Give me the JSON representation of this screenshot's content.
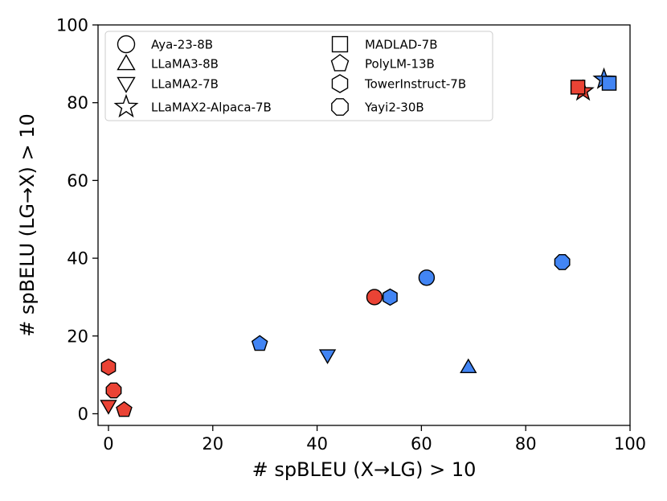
{
  "chart_data": {
    "type": "scatter",
    "title": "",
    "xlabel": "# spBLEU (X→LG) > 10",
    "ylabel": "# spBELU (LG→X) > 10",
    "xlim": [
      -2,
      100
    ],
    "ylim": [
      -3,
      100
    ],
    "xticks": [
      0,
      20,
      40,
      60,
      80,
      100
    ],
    "yticks": [
      0,
      20,
      40,
      60,
      80,
      100
    ],
    "grid": false,
    "legend_position": "top-left",
    "colors": {
      "blue": "#4285f4",
      "red": "#ea4335"
    },
    "models": [
      {
        "name": "Aya-23-8B",
        "marker": "circle"
      },
      {
        "name": "LLaMA3-8B",
        "marker": "triangle-up"
      },
      {
        "name": "LLaMA2-7B",
        "marker": "triangle-down"
      },
      {
        "name": "LLaMAX2-Alpaca-7B",
        "marker": "star"
      },
      {
        "name": "MADLAD-7B",
        "marker": "square"
      },
      {
        "name": "PolyLM-13B",
        "marker": "pentagon"
      },
      {
        "name": "TowerInstruct-7B",
        "marker": "hexagon"
      },
      {
        "name": "Yayi2-30B",
        "marker": "octagon"
      }
    ],
    "points": [
      {
        "model": "TowerInstruct-7B",
        "color": "red",
        "x": 0,
        "y": 12
      },
      {
        "model": "Yayi2-30B",
        "color": "red",
        "x": 1,
        "y": 6
      },
      {
        "model": "PolyLM-13B",
        "color": "red",
        "x": 3,
        "y": 1
      },
      {
        "model": "LLaMA2-7B",
        "color": "red",
        "x": 0,
        "y": 2
      },
      {
        "model": "PolyLM-13B",
        "color": "blue",
        "x": 29,
        "y": 18
      },
      {
        "model": "LLaMA2-7B",
        "color": "blue",
        "x": 42,
        "y": 15
      },
      {
        "model": "Aya-23-8B",
        "color": "red",
        "x": 51,
        "y": 30
      },
      {
        "model": "TowerInstruct-7B",
        "color": "blue",
        "x": 54,
        "y": 30
      },
      {
        "model": "Aya-23-8B",
        "color": "blue",
        "x": 61,
        "y": 35
      },
      {
        "model": "LLaMA3-8B",
        "color": "blue",
        "x": 69,
        "y": 12
      },
      {
        "model": "Yayi2-30B",
        "color": "blue",
        "x": 87,
        "y": 39
      },
      {
        "model": "LLaMAX2-Alpaca-7B",
        "color": "red",
        "x": 91,
        "y": 83
      },
      {
        "model": "MADLAD-7B",
        "color": "red",
        "x": 90,
        "y": 84
      },
      {
        "model": "LLaMAX2-Alpaca-7B",
        "color": "blue",
        "x": 95,
        "y": 86
      },
      {
        "model": "MADLAD-7B",
        "color": "blue",
        "x": 96,
        "y": 85
      }
    ]
  }
}
